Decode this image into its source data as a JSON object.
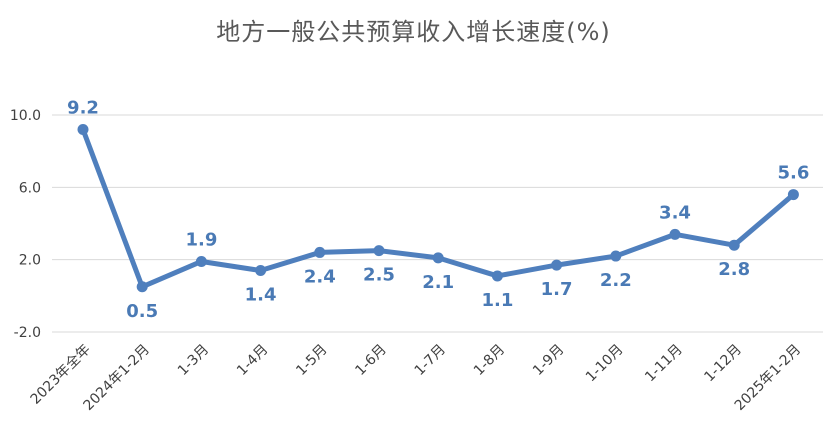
{
  "chart_data": {
    "type": "line",
    "title": "地方一般公共预算收入增长速度(%)",
    "categories": [
      "2023年全年",
      "2024年1-2月",
      "1-3月",
      "1-4月",
      "1-5月",
      "1-6月",
      "1-7月",
      "1-8月",
      "1-9月",
      "1-10月",
      "1-11月",
      "1-12月",
      "2025年1-2月"
    ],
    "values": [
      9.2,
      0.5,
      1.9,
      1.4,
      2.4,
      2.5,
      2.1,
      1.1,
      1.7,
      2.2,
      3.4,
      2.8,
      5.6
    ],
    "data_labels": [
      "9.2",
      "0.5",
      "1.9",
      "1.4",
      "2.4",
      "2.5",
      "2.1",
      "1.1",
      "1.7",
      "2.2",
      "3.4",
      "2.8",
      "5.6"
    ],
    "y_ticks": [
      "10.0",
      "6.0",
      "2.0",
      "-2.0"
    ],
    "y_tick_values": [
      10,
      6,
      2,
      -2
    ],
    "ylim": [
      -2,
      10
    ],
    "grid": true,
    "legend": "none",
    "line_color": "#4f7fbd",
    "label_color": "#4a7ab5"
  }
}
